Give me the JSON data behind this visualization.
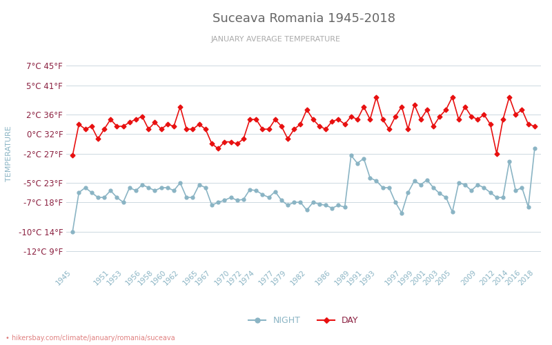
{
  "title": "Suceava Romania 1945-2018",
  "subtitle": "JANUARY AVERAGE TEMPERATURE",
  "ylabel": "TEMPERATURE",
  "watermark": "• hikersbay.com/climate/january/romania/suceava",
  "legend_night": "NIGHT",
  "legend_day": "DAY",
  "night_color": "#8ab4c4",
  "day_color": "#e81010",
  "title_color": "#666666",
  "subtitle_color": "#aaaaaa",
  "ylabel_color": "#8ab4c4",
  "ytick_color": "#8b2040",
  "xtick_color": "#8ab4c4",
  "background_color": "#ffffff",
  "grid_color": "#ccd8e0",
  "years": [
    1945,
    1946,
    1947,
    1948,
    1949,
    1950,
    1951,
    1952,
    1953,
    1954,
    1955,
    1956,
    1957,
    1958,
    1959,
    1960,
    1961,
    1962,
    1963,
    1964,
    1965,
    1966,
    1967,
    1968,
    1969,
    1970,
    1971,
    1972,
    1973,
    1974,
    1975,
    1976,
    1977,
    1978,
    1979,
    1980,
    1981,
    1982,
    1983,
    1984,
    1985,
    1986,
    1987,
    1988,
    1989,
    1990,
    1991,
    1992,
    1993,
    1994,
    1995,
    1996,
    1997,
    1998,
    1999,
    2000,
    2001,
    2002,
    2003,
    2004,
    2005,
    2006,
    2007,
    2008,
    2009,
    2010,
    2011,
    2012,
    2013,
    2014,
    2015,
    2016,
    2017,
    2018
  ],
  "day_temps": [
    -2.2,
    1.0,
    0.5,
    0.8,
    -0.5,
    0.5,
    1.5,
    0.8,
    0.8,
    1.2,
    1.5,
    1.8,
    0.5,
    1.2,
    0.5,
    1.0,
    0.8,
    2.8,
    0.5,
    0.5,
    1.0,
    0.5,
    -1.0,
    -1.5,
    -0.8,
    -0.8,
    -1.0,
    -0.5,
    1.5,
    1.5,
    0.5,
    0.5,
    1.5,
    0.8,
    -0.5,
    0.5,
    1.0,
    2.5,
    1.5,
    0.8,
    0.5,
    1.3,
    1.5,
    1.0,
    1.8,
    1.5,
    2.8,
    1.5,
    3.8,
    1.5,
    0.5,
    1.8,
    2.8,
    0.5,
    3.0,
    1.5,
    2.5,
    0.8,
    1.8,
    2.5,
    3.8,
    1.5,
    2.8,
    1.8,
    1.5,
    2.0,
    1.0,
    -2.0,
    1.5,
    3.8,
    2.0,
    2.5,
    1.0,
    0.8
  ],
  "night_temps": [
    -10.0,
    -6.0,
    -5.5,
    -6.0,
    -6.5,
    -6.5,
    -5.8,
    -6.5,
    -7.0,
    -5.5,
    -5.8,
    -5.2,
    -5.5,
    -5.8,
    -5.5,
    -5.5,
    -5.8,
    -5.0,
    -6.5,
    -6.5,
    -5.2,
    -5.5,
    -7.3,
    -7.0,
    -6.8,
    -6.5,
    -6.8,
    -6.7,
    -5.7,
    -5.8,
    -6.2,
    -6.5,
    -5.9,
    -6.8,
    -7.3,
    -7.0,
    -7.0,
    -7.8,
    -7.0,
    -7.2,
    -7.3,
    -7.6,
    -7.3,
    -7.5,
    -2.2,
    -3.0,
    -2.5,
    -4.5,
    -4.8,
    -5.5,
    -5.5,
    -7.0,
    -8.1,
    -6.0,
    -4.8,
    -5.2,
    -4.7,
    -5.5,
    -6.1,
    -6.5,
    -8.0,
    -5.0,
    -5.2,
    -5.8,
    -5.2,
    -5.5,
    -6.0,
    -6.5,
    -6.5,
    -2.8,
    -5.8,
    -5.5,
    -7.5,
    -1.5
  ],
  "yticks_c": [
    7,
    5,
    2,
    0,
    -2,
    -5,
    -7,
    -10,
    -12
  ],
  "yticks_f": [
    45,
    41,
    36,
    32,
    27,
    23,
    18,
    14,
    9
  ],
  "xtick_years": [
    1945,
    1951,
    1953,
    1956,
    1958,
    1960,
    1962,
    1965,
    1967,
    1970,
    1972,
    1974,
    1977,
    1979,
    1982,
    1986,
    1989,
    1991,
    1993,
    1997,
    1999,
    2001,
    2003,
    2005,
    2009,
    2012,
    2014,
    2016,
    2018
  ],
  "ylim": [
    -13.5,
    9.5
  ],
  "xlim": [
    1944,
    2019
  ],
  "figsize": [
    8.0,
    5.0
  ],
  "dpi": 100
}
